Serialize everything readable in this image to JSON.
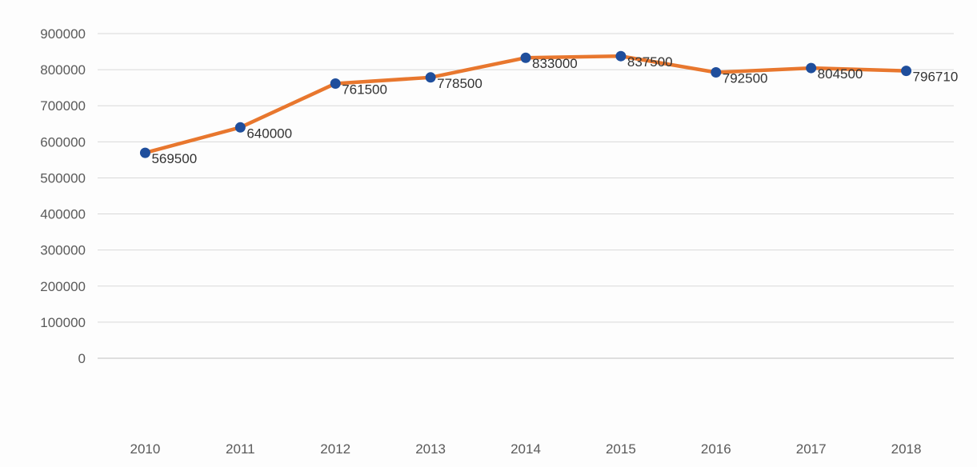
{
  "chart_data": {
    "type": "line",
    "title": "",
    "xlabel": "",
    "ylabel": "",
    "categories": [
      "2010",
      "2011",
      "2012",
      "2013",
      "2014",
      "2015",
      "2016",
      "2017",
      "2018"
    ],
    "series": [
      {
        "values": [
          569500,
          640000,
          761500,
          778500,
          833000,
          837500,
          792500,
          804500,
          796710
        ],
        "data_labels": [
          "569500",
          "640000",
          "761500",
          "778500",
          "833000",
          "837500",
          "792500",
          "804500",
          "796710"
        ],
        "line_color": "#e8772e",
        "marker_color": "#1f4e9c"
      }
    ],
    "ylim": [
      0,
      900000
    ],
    "yticks": [
      "0",
      "100000",
      "200000",
      "300000",
      "400000",
      "500000",
      "600000",
      "700000",
      "800000",
      "900000"
    ],
    "grid": true,
    "legend": "none",
    "colors": {
      "gridline": "#d9d9d9",
      "axis": "#bfbfbf"
    }
  }
}
